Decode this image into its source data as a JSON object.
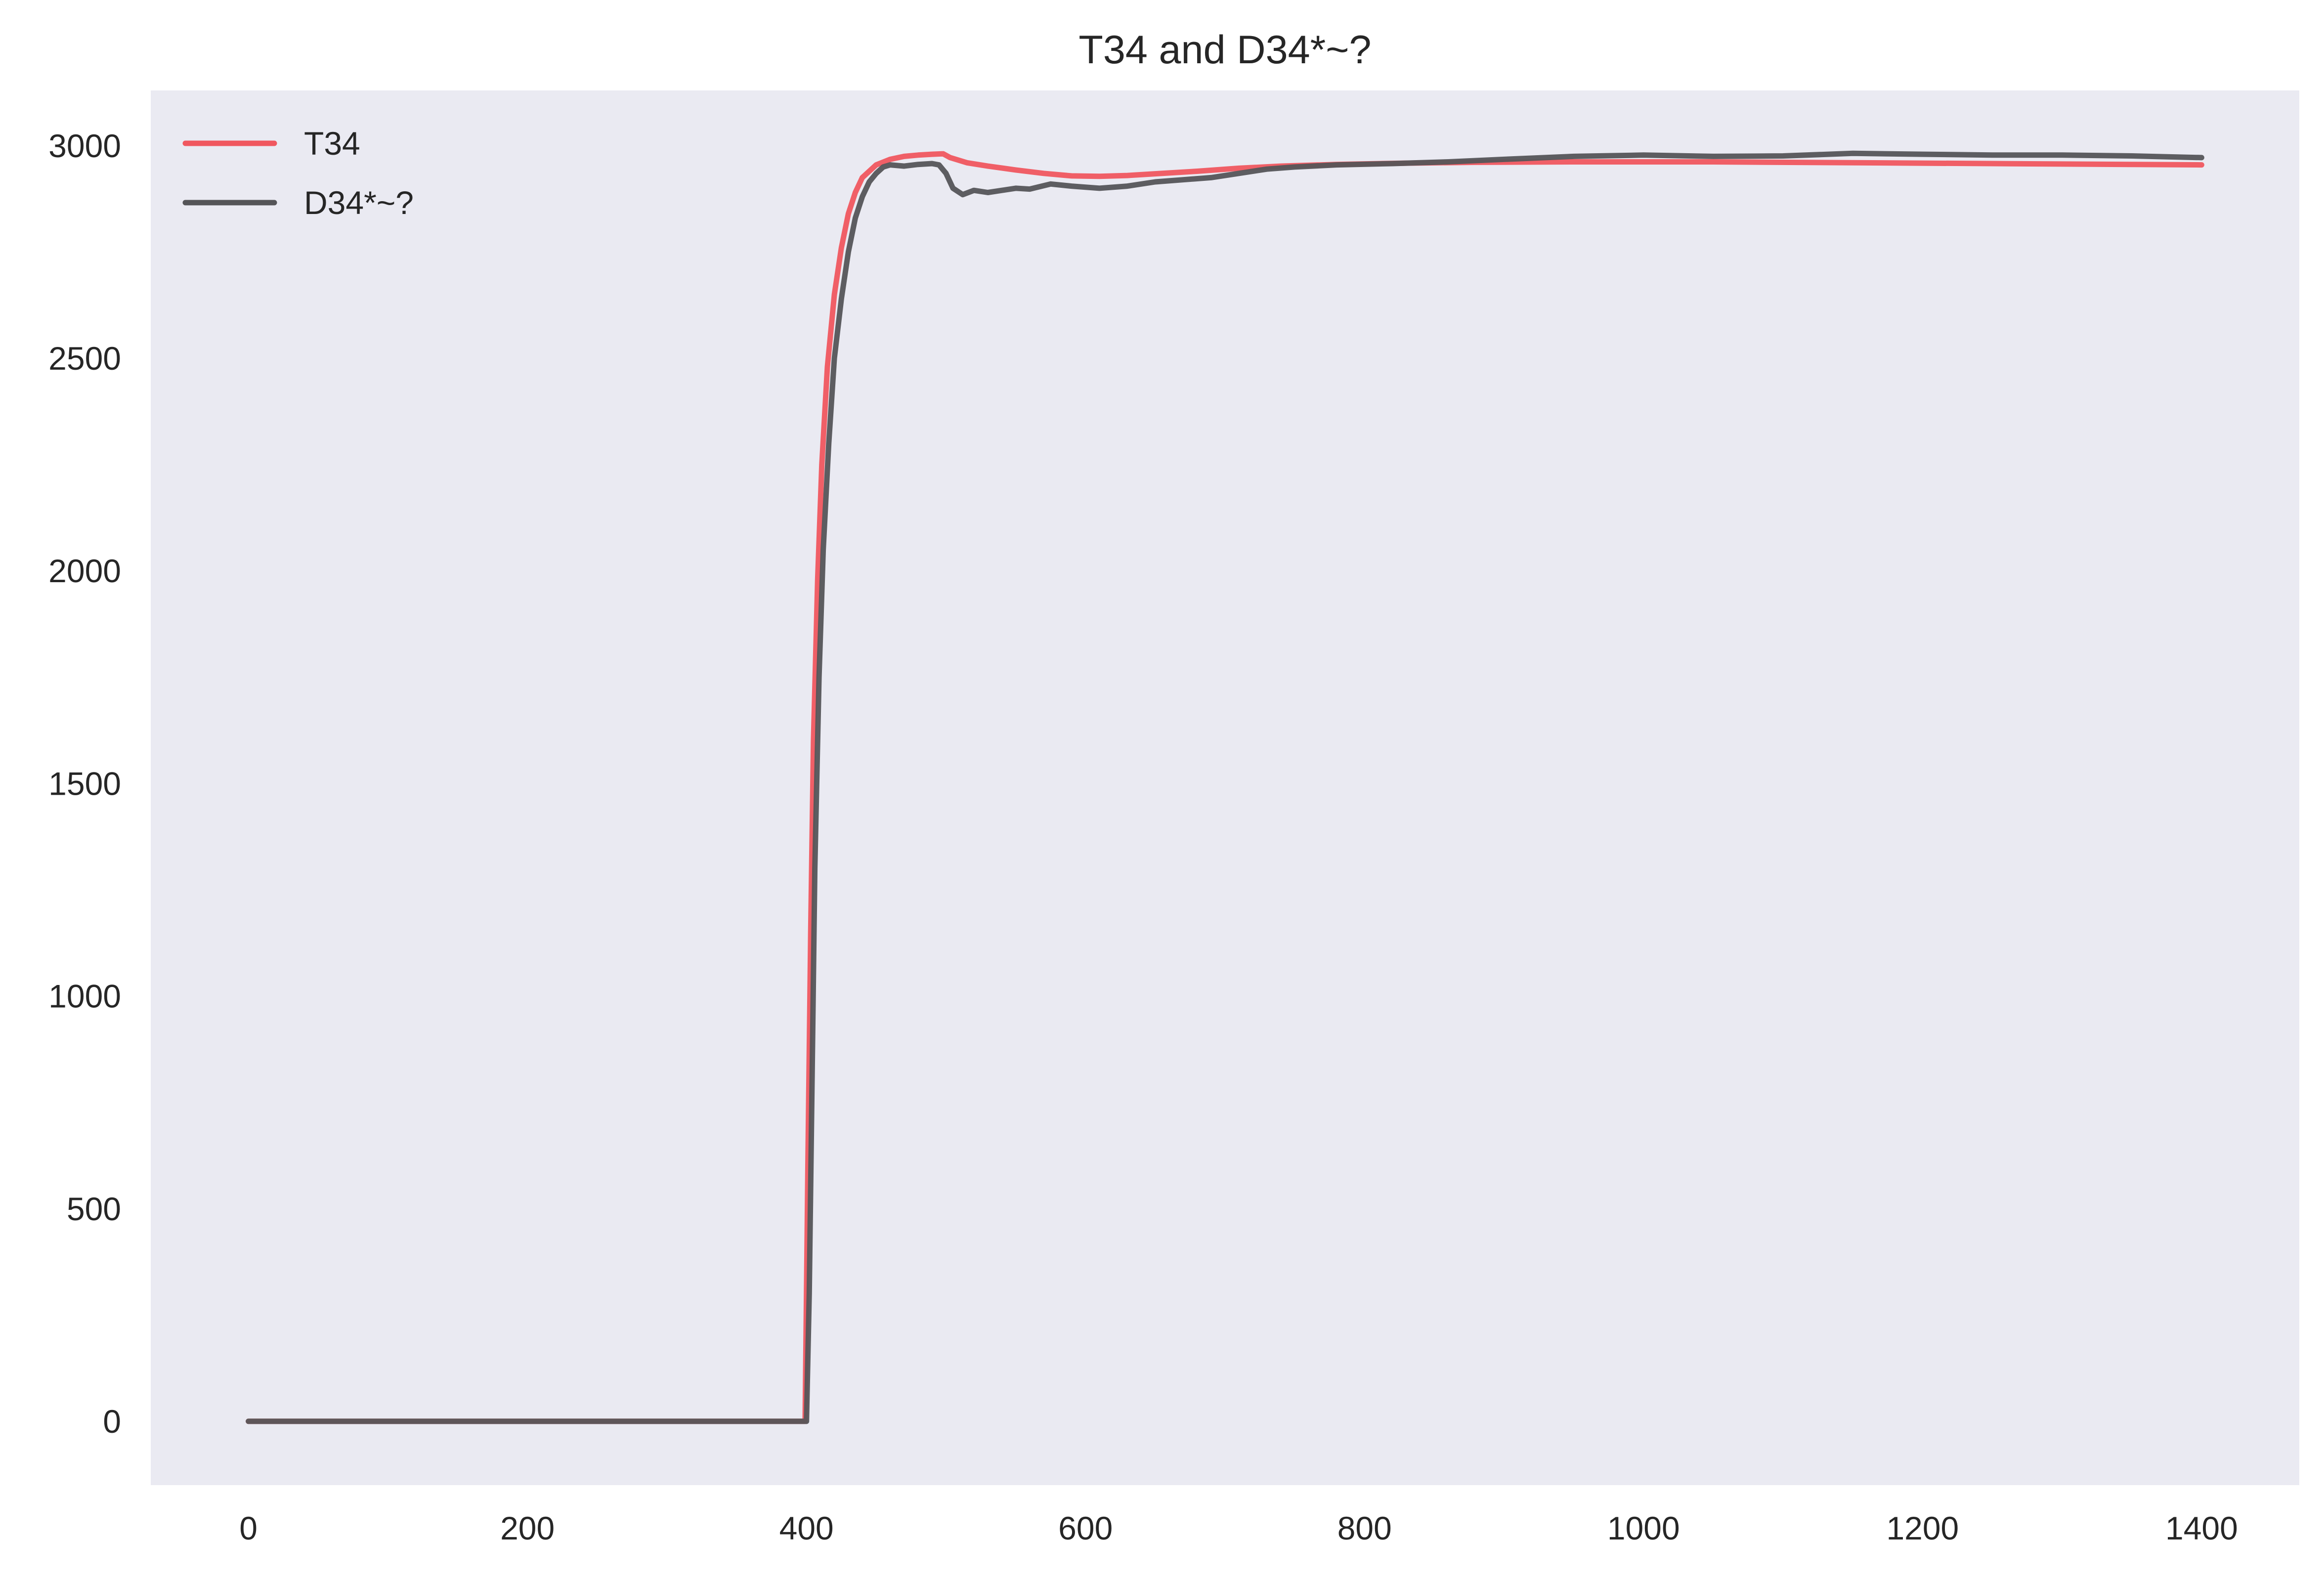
{
  "chart_data": {
    "type": "line",
    "title": "T34 and D34*~?",
    "xlabel": "",
    "ylabel": "",
    "xlim": [
      -70,
      1470
    ],
    "ylim": [
      -150,
      3130
    ],
    "x_ticks": [
      0,
      200,
      400,
      600,
      800,
      1000,
      1200,
      1400
    ],
    "y_ticks": [
      0,
      500,
      1000,
      1500,
      2000,
      2500,
      3000
    ],
    "grid": false,
    "legend_position": "top-left",
    "series": [
      {
        "name": "T34",
        "color": "#f0575f",
        "points": [
          [
            0,
            0
          ],
          [
            399,
            0
          ],
          [
            401,
            600
          ],
          [
            403,
            1150
          ],
          [
            405,
            1600
          ],
          [
            408,
            1980
          ],
          [
            411,
            2250
          ],
          [
            415,
            2480
          ],
          [
            420,
            2650
          ],
          [
            425,
            2760
          ],
          [
            430,
            2840
          ],
          [
            435,
            2890
          ],
          [
            440,
            2925
          ],
          [
            450,
            2955
          ],
          [
            460,
            2968
          ],
          [
            470,
            2975
          ],
          [
            480,
            2978
          ],
          [
            490,
            2980
          ],
          [
            498,
            2981
          ],
          [
            503,
            2972
          ],
          [
            515,
            2960
          ],
          [
            530,
            2952
          ],
          [
            550,
            2943
          ],
          [
            570,
            2935
          ],
          [
            590,
            2929
          ],
          [
            610,
            2928
          ],
          [
            630,
            2930
          ],
          [
            650,
            2934
          ],
          [
            680,
            2940
          ],
          [
            710,
            2947
          ],
          [
            740,
            2952
          ],
          [
            780,
            2956
          ],
          [
            830,
            2959
          ],
          [
            880,
            2961
          ],
          [
            950,
            2962
          ],
          [
            1050,
            2962
          ],
          [
            1150,
            2960
          ],
          [
            1250,
            2958
          ],
          [
            1350,
            2956
          ],
          [
            1400,
            2955
          ]
        ]
      },
      {
        "name": "D34*~?",
        "color": "#555558",
        "points": [
          [
            0,
            0
          ],
          [
            400,
            0
          ],
          [
            402,
            300
          ],
          [
            404,
            800
          ],
          [
            406,
            1300
          ],
          [
            409,
            1750
          ],
          [
            412,
            2050
          ],
          [
            416,
            2300
          ],
          [
            420,
            2500
          ],
          [
            425,
            2640
          ],
          [
            430,
            2750
          ],
          [
            435,
            2830
          ],
          [
            440,
            2880
          ],
          [
            445,
            2915
          ],
          [
            450,
            2935
          ],
          [
            455,
            2950
          ],
          [
            460,
            2955
          ],
          [
            470,
            2952
          ],
          [
            480,
            2956
          ],
          [
            490,
            2958
          ],
          [
            495,
            2955
          ],
          [
            500,
            2935
          ],
          [
            505,
            2900
          ],
          [
            512,
            2885
          ],
          [
            520,
            2895
          ],
          [
            530,
            2890
          ],
          [
            540,
            2895
          ],
          [
            550,
            2900
          ],
          [
            560,
            2898
          ],
          [
            575,
            2910
          ],
          [
            590,
            2905
          ],
          [
            610,
            2900
          ],
          [
            630,
            2905
          ],
          [
            650,
            2915
          ],
          [
            670,
            2920
          ],
          [
            690,
            2925
          ],
          [
            710,
            2935
          ],
          [
            730,
            2945
          ],
          [
            750,
            2950
          ],
          [
            780,
            2955
          ],
          [
            820,
            2958
          ],
          [
            860,
            2962
          ],
          [
            900,
            2968
          ],
          [
            950,
            2975
          ],
          [
            1000,
            2978
          ],
          [
            1050,
            2975
          ],
          [
            1100,
            2976
          ],
          [
            1150,
            2982
          ],
          [
            1200,
            2980
          ],
          [
            1250,
            2978
          ],
          [
            1300,
            2978
          ],
          [
            1350,
            2976
          ],
          [
            1400,
            2972
          ]
        ]
      }
    ]
  }
}
